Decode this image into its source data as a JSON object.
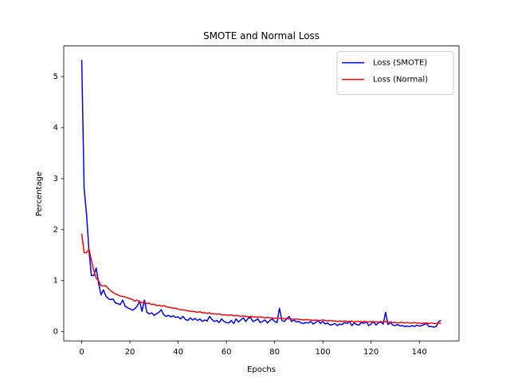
{
  "chart_data": {
    "type": "line",
    "title": "SMOTE and Normal Loss",
    "xlabel": "Epochs",
    "ylabel": "Percentage",
    "x": [
      0,
      1,
      2,
      3,
      4,
      5,
      6,
      7,
      8,
      9,
      10,
      11,
      12,
      13,
      14,
      15,
      16,
      17,
      18,
      19,
      20,
      21,
      22,
      23,
      24,
      25,
      26,
      27,
      28,
      29,
      30,
      31,
      32,
      33,
      34,
      35,
      36,
      37,
      38,
      39,
      40,
      41,
      42,
      43,
      44,
      45,
      46,
      47,
      48,
      49,
      50,
      51,
      52,
      53,
      54,
      55,
      56,
      57,
      58,
      59,
      60,
      61,
      62,
      63,
      64,
      65,
      66,
      67,
      68,
      69,
      70,
      71,
      72,
      73,
      74,
      75,
      76,
      77,
      78,
      79,
      80,
      81,
      82,
      83,
      84,
      85,
      86,
      87,
      88,
      89,
      90,
      91,
      92,
      93,
      94,
      95,
      96,
      97,
      98,
      99,
      100,
      101,
      102,
      103,
      104,
      105,
      106,
      107,
      108,
      109,
      110,
      111,
      112,
      113,
      114,
      115,
      116,
      117,
      118,
      119,
      120,
      121,
      122,
      123,
      124,
      125,
      126,
      127,
      128,
      129,
      130,
      131,
      132,
      133,
      134,
      135,
      136,
      137,
      138,
      139,
      140,
      141,
      142,
      143,
      144,
      145,
      146,
      147,
      148,
      149
    ],
    "series": [
      {
        "name": "Loss (SMOTE)",
        "color": "#0000ff",
        "values": [
          5.33,
          2.8,
          2.3,
          1.6,
          1.1,
          1.1,
          1.25,
          0.95,
          0.72,
          0.82,
          0.7,
          0.65,
          0.63,
          0.64,
          0.56,
          0.55,
          0.53,
          0.62,
          0.5,
          0.47,
          0.45,
          0.42,
          0.45,
          0.5,
          0.6,
          0.4,
          0.62,
          0.38,
          0.35,
          0.37,
          0.32,
          0.35,
          0.38,
          0.43,
          0.33,
          0.3,
          0.32,
          0.29,
          0.31,
          0.28,
          0.29,
          0.25,
          0.3,
          0.24,
          0.22,
          0.27,
          0.23,
          0.26,
          0.22,
          0.25,
          0.2,
          0.23,
          0.21,
          0.3,
          0.24,
          0.2,
          0.22,
          0.18,
          0.25,
          0.2,
          0.18,
          0.17,
          0.22,
          0.16,
          0.25,
          0.19,
          0.23,
          0.27,
          0.2,
          0.26,
          0.28,
          0.2,
          0.22,
          0.25,
          0.18,
          0.2,
          0.23,
          0.17,
          0.22,
          0.25,
          0.2,
          0.18,
          0.46,
          0.22,
          0.2,
          0.25,
          0.3,
          0.2,
          0.23,
          0.19,
          0.2,
          0.17,
          0.16,
          0.18,
          0.17,
          0.2,
          0.15,
          0.18,
          0.22,
          0.16,
          0.2,
          0.15,
          0.17,
          0.13,
          0.14,
          0.16,
          0.12,
          0.15,
          0.14,
          0.18,
          0.16,
          0.2,
          0.12,
          0.17,
          0.14,
          0.13,
          0.18,
          0.16,
          0.2,
          0.12,
          0.15,
          0.2,
          0.13,
          0.17,
          0.2,
          0.15,
          0.38,
          0.14,
          0.18,
          0.13,
          0.12,
          0.14,
          0.11,
          0.12,
          0.1,
          0.11,
          0.1,
          0.12,
          0.1,
          0.13,
          0.11,
          0.12,
          0.14,
          0.16,
          0.1,
          0.1,
          0.09,
          0.1,
          0.2,
          0.22
        ]
      },
      {
        "name": "Loss (Normal)",
        "color": "#ff0000",
        "values": [
          1.92,
          1.55,
          1.55,
          1.62,
          1.4,
          1.2,
          1.05,
          1.0,
          0.9,
          0.9,
          0.9,
          0.85,
          0.8,
          0.77,
          0.74,
          0.72,
          0.7,
          0.69,
          0.68,
          0.66,
          0.65,
          0.63,
          0.6,
          0.62,
          0.58,
          0.57,
          0.58,
          0.55,
          0.56,
          0.53,
          0.54,
          0.51,
          0.52,
          0.5,
          0.51,
          0.49,
          0.48,
          0.47,
          0.46,
          0.46,
          0.44,
          0.43,
          0.43,
          0.42,
          0.41,
          0.4,
          0.4,
          0.39,
          0.38,
          0.39,
          0.37,
          0.37,
          0.36,
          0.37,
          0.35,
          0.35,
          0.34,
          0.35,
          0.33,
          0.33,
          0.33,
          0.32,
          0.33,
          0.31,
          0.32,
          0.31,
          0.3,
          0.31,
          0.3,
          0.29,
          0.3,
          0.29,
          0.29,
          0.28,
          0.29,
          0.28,
          0.27,
          0.28,
          0.27,
          0.27,
          0.26,
          0.27,
          0.26,
          0.26,
          0.25,
          0.26,
          0.25,
          0.25,
          0.24,
          0.25,
          0.24,
          0.24,
          0.23,
          0.24,
          0.23,
          0.23,
          0.22,
          0.23,
          0.22,
          0.22,
          0.23,
          0.22,
          0.21,
          0.22,
          0.21,
          0.21,
          0.2,
          0.21,
          0.2,
          0.21,
          0.2,
          0.2,
          0.21,
          0.19,
          0.2,
          0.2,
          0.19,
          0.2,
          0.19,
          0.19,
          0.2,
          0.18,
          0.19,
          0.19,
          0.18,
          0.19,
          0.2,
          0.18,
          0.19,
          0.18,
          0.18,
          0.17,
          0.18,
          0.18,
          0.17,
          0.18,
          0.17,
          0.17,
          0.18,
          0.17,
          0.17,
          0.16,
          0.17,
          0.17,
          0.16,
          0.17,
          0.16,
          0.16,
          0.17,
          0.16
        ]
      }
    ],
    "xlim": [
      -7.45,
      156.45
    ],
    "ylim": [
      -0.18,
      5.6
    ],
    "xticks": [
      0,
      20,
      40,
      60,
      80,
      100,
      120,
      140
    ],
    "yticks": [
      0,
      1,
      2,
      3,
      4,
      5
    ],
    "legend": "upper right"
  }
}
